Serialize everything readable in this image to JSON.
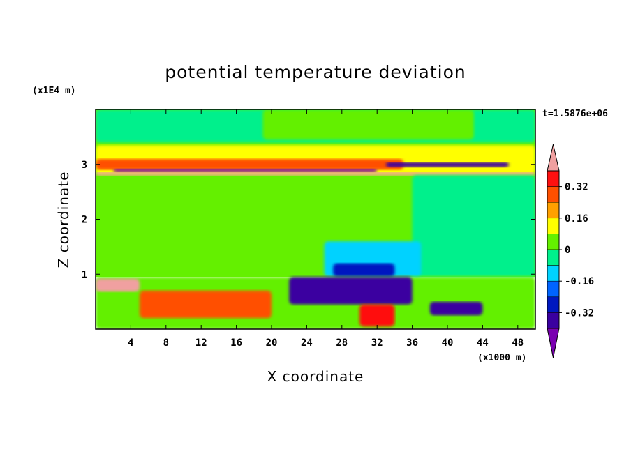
{
  "chart_data": {
    "type": "heatmap",
    "title": "potential temperature deviation",
    "xlabel": "X coordinate",
    "ylabel": "Z coordinate",
    "x_unit": "(x1000 m)",
    "y_unit": "(x1E4 m)",
    "time_label": "t=1.5876e+06",
    "xlim": [
      0,
      50
    ],
    "ylim": [
      0,
      4
    ],
    "x_ticks": [
      "4",
      "8",
      "12",
      "16",
      "20",
      "24",
      "28",
      "32",
      "36",
      "40",
      "44",
      "48"
    ],
    "y_ticks": [
      "1",
      "2",
      "3"
    ],
    "colorbar": {
      "levels": [
        -0.48,
        -0.4,
        -0.32,
        -0.24,
        -0.16,
        -0.08,
        0,
        0.08,
        0.16,
        0.24,
        0.32,
        0.4
      ],
      "labels": [
        "0.32",
        "0.16",
        "0",
        "-0.16",
        "-0.32"
      ],
      "colors": [
        "#7a00b0",
        "#3a00a0",
        "#0018c0",
        "#0064ff",
        "#00d2ff",
        "#00f08c",
        "#64f000",
        "#ffff00",
        "#ffa000",
        "#ff5000",
        "#ff1010",
        "#f0a0a0"
      ]
    },
    "regions": [
      {
        "x": [
          0,
          50
        ],
        "z": [
          0.95,
          4.0
        ],
        "value": 0.03
      },
      {
        "x": [
          0,
          50
        ],
        "z": [
          3.4,
          4.0
        ],
        "value": -0.03
      },
      {
        "x": [
          19,
          43
        ],
        "z": [
          3.45,
          4.0
        ],
        "value": 0.03
      },
      {
        "x": [
          0,
          50
        ],
        "z": [
          2.82,
          3.35
        ],
        "value": 0.1
      },
      {
        "x": [
          0,
          35
        ],
        "z": [
          2.9,
          3.1
        ],
        "value": 0.3
      },
      {
        "x": [
          2,
          32
        ],
        "z": [
          2.86,
          2.92
        ],
        "value": -0.42
      },
      {
        "x": [
          33,
          47
        ],
        "z": [
          2.95,
          3.04
        ],
        "value": -0.35
      },
      {
        "x": [
          0,
          50
        ],
        "z": [
          2.8,
          2.86
        ],
        "value": 0.45
      },
      {
        "x": [
          36,
          50
        ],
        "z": [
          0.95,
          2.8
        ],
        "value": -0.03
      },
      {
        "x": [
          26,
          37
        ],
        "z": [
          0.95,
          1.6
        ],
        "value": -0.12
      },
      {
        "x": [
          27,
          34
        ],
        "z": [
          0.95,
          1.2
        ],
        "value": -0.28
      },
      {
        "x": [
          0,
          50
        ],
        "z": [
          0.0,
          0.95
        ],
        "value": 0.0
      },
      {
        "x": [
          0,
          5
        ],
        "z": [
          0.68,
          0.92
        ],
        "value": 0.44
      },
      {
        "x": [
          5,
          20
        ],
        "z": [
          0.2,
          0.7
        ],
        "value": 0.3
      },
      {
        "x": [
          22,
          36
        ],
        "z": [
          0.45,
          0.95
        ],
        "value": -0.4
      },
      {
        "x": [
          30,
          34
        ],
        "z": [
          0.05,
          0.45
        ],
        "value": 0.35
      },
      {
        "x": [
          38,
          44
        ],
        "z": [
          0.25,
          0.5
        ],
        "value": -0.4
      }
    ]
  }
}
